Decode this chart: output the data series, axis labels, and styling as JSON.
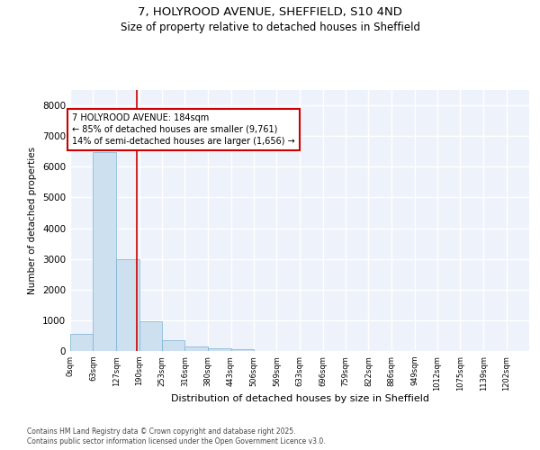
{
  "title_line1": "7, HOLYROOD AVENUE, SHEFFIELD, S10 4ND",
  "title_line2": "Size of property relative to detached houses in Sheffield",
  "xlabel": "Distribution of detached houses by size in Sheffield",
  "ylabel": "Number of detached properties",
  "bar_color": "#cce0f0",
  "bar_edge_color": "#7ab0d4",
  "background_color": "#eef2fa",
  "grid_color": "#ffffff",
  "property_size": 184,
  "annotation_line1": "7 HOLYROOD AVENUE: 184sqm",
  "annotation_line2": "← 85% of detached houses are smaller (9,761)",
  "annotation_line3": "14% of semi-detached houses are larger (1,656) →",
  "annotation_box_color": "#cc0000",
  "vline_color": "#cc0000",
  "footer_line1": "Contains HM Land Registry data © Crown copyright and database right 2025.",
  "footer_line2": "Contains public sector information licensed under the Open Government Licence v3.0.",
  "bin_edges": [
    0,
    63,
    127,
    190,
    253,
    316,
    380,
    443,
    506,
    569,
    633,
    696,
    759,
    822,
    886,
    949,
    1012,
    1075,
    1139,
    1202,
    1265
  ],
  "bar_heights": [
    570,
    6480,
    2980,
    960,
    360,
    155,
    100,
    60,
    0,
    0,
    0,
    0,
    0,
    0,
    0,
    0,
    0,
    0,
    0,
    0
  ],
  "ylim": [
    0,
    8500
  ],
  "yticks": [
    0,
    1000,
    2000,
    3000,
    4000,
    5000,
    6000,
    7000,
    8000
  ]
}
